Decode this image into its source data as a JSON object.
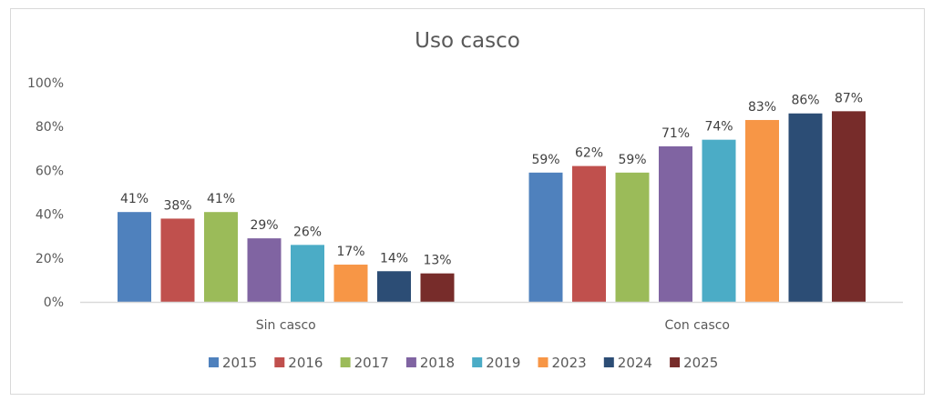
{
  "chart_data": {
    "type": "bar",
    "title": "Uso casco",
    "xlabel": "",
    "ylabel": "",
    "categories": [
      "Sin casco",
      "Con casco"
    ],
    "ylim": [
      0,
      100
    ],
    "yticks": [
      "0%",
      "20%",
      "40%",
      "60%",
      "80%",
      "100%"
    ],
    "ytick_values": [
      0,
      20,
      40,
      60,
      80,
      100
    ],
    "grid": false,
    "legend_position": "bottom",
    "value_suffix": "%",
    "series": [
      {
        "name": "2015",
        "color": "#4f81bd",
        "values": [
          41,
          59
        ]
      },
      {
        "name": "2016",
        "color": "#c0504d",
        "values": [
          38,
          62
        ]
      },
      {
        "name": "2017",
        "color": "#9bbb59",
        "values": [
          41,
          59
        ]
      },
      {
        "name": "2018",
        "color": "#8064a2",
        "values": [
          29,
          71
        ]
      },
      {
        "name": "2019",
        "color": "#4bacc6",
        "values": [
          26,
          74
        ]
      },
      {
        "name": "2023",
        "color": "#f79646",
        "values": [
          17,
          83
        ]
      },
      {
        "name": "2024",
        "color": "#2c4d75",
        "values": [
          14,
          86
        ]
      },
      {
        "name": "2025",
        "color": "#772c2a",
        "values": [
          13,
          87
        ]
      }
    ]
  }
}
